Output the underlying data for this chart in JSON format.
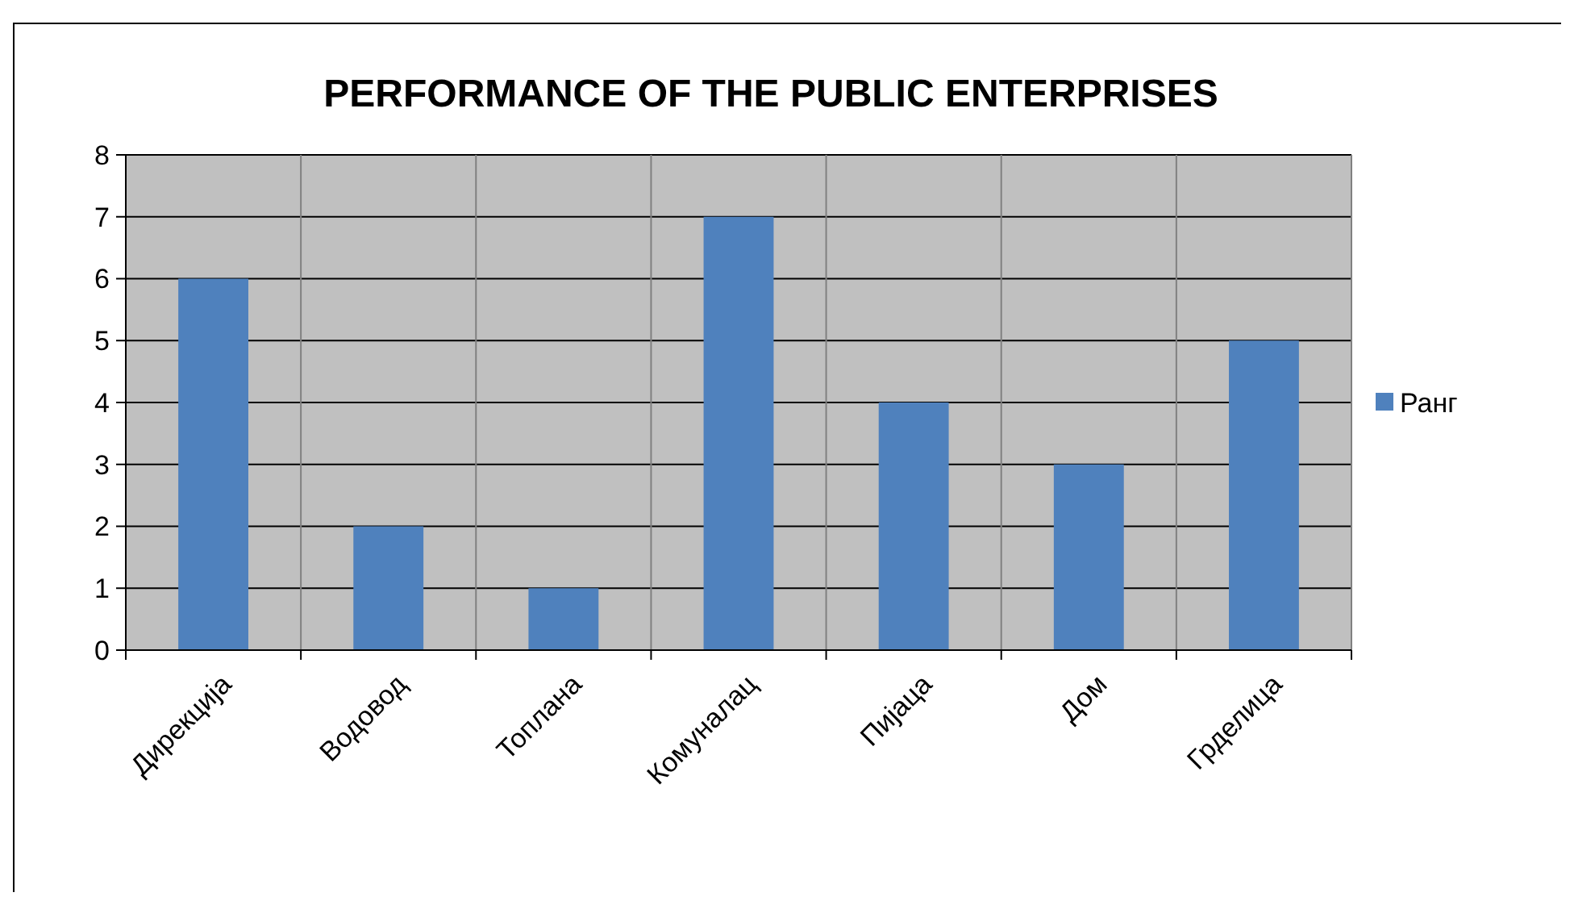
{
  "chart_data": {
    "type": "bar",
    "title": "PERFORMANCE OF THE PUBLIC ENTERPRISES",
    "categories": [
      "Дирекција",
      "Водовод",
      "Топлана",
      "Комуналац",
      "Пијаца",
      "Дом",
      "Грделица"
    ],
    "series": [
      {
        "name": "Ранг",
        "color": "#4f81bd",
        "values": [
          6,
          2,
          1,
          7,
          4,
          3,
          5
        ]
      }
    ],
    "ylim": [
      0,
      8
    ],
    "yticks": [
      0,
      1,
      2,
      3,
      4,
      5,
      6,
      7,
      8
    ],
    "grid": true,
    "legend": "right"
  }
}
